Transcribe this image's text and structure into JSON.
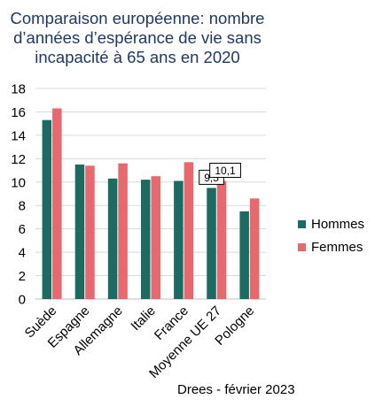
{
  "colors": {
    "hommes": "#1a6b61",
    "femmes": "#e8686d",
    "title": "#1f3864",
    "grid": "#d9d9d9"
  },
  "title_lines": [
    "Comparaison européenne: nombre",
    "d’années d’espérance de vie sans",
    "incapacité à 65 ans en 2020"
  ],
  "source": "Drees - février 2023",
  "chart_data": {
    "type": "bar",
    "title": "Comparaison européenne: nombre d’années d’espérance de vie sans incapacité à 65 ans en 2020",
    "categories": [
      "Suède",
      "Espagne",
      "Allemagne",
      "Italie",
      "France",
      "Moyenne UE 27",
      "Pologne"
    ],
    "series": [
      {
        "name": "Hommes",
        "values": [
          15.3,
          11.5,
          10.3,
          10.2,
          10.1,
          9.5,
          7.5
        ]
      },
      {
        "name": "Femmes",
        "values": [
          16.3,
          11.4,
          11.6,
          10.5,
          11.7,
          10.1,
          8.6
        ]
      }
    ],
    "data_labels": [
      {
        "series": "Hommes",
        "category": "Moyenne UE 27",
        "text": "9,5"
      },
      {
        "series": "Femmes",
        "category": "Moyenne UE 27",
        "text": "10,1"
      }
    ],
    "yticks": [
      "0",
      "2",
      "4",
      "6",
      "8",
      "10",
      "12",
      "14",
      "16",
      "18"
    ],
    "ylim": [
      0,
      18
    ],
    "xlabel": "",
    "ylabel": "",
    "grid": true,
    "legend_position": "right"
  }
}
